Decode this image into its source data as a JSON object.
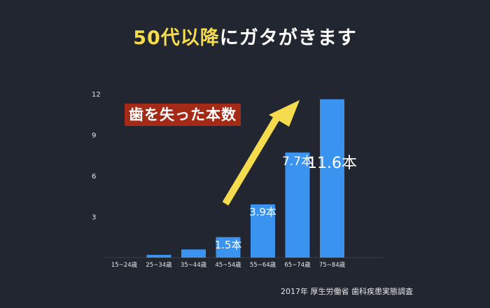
{
  "title": {
    "highlight": "50代以降",
    "rest": "にガタがきます"
  },
  "badge": "歯を失った本数",
  "source": "2017年 厚生労働省 歯科疾患実態調査",
  "colors": {
    "background": "#222630",
    "bar": "#3b93f0",
    "highlight": "#f5dc4e",
    "badge": "#a32a17",
    "arrow": "#f5dc4e"
  },
  "chart_data": {
    "type": "bar",
    "categories": [
      "15~24歳",
      "25~34歳",
      "35~44歳",
      "45~54歳",
      "55~64歳",
      "65~74歳",
      "75~84歳"
    ],
    "values": [
      0,
      0.2,
      0.6,
      1.5,
      3.9,
      7.7,
      11.6
    ],
    "value_labels": [
      "",
      "",
      "",
      "1.5本",
      "3.9本",
      "7.7本",
      "11.6本"
    ],
    "yticks": [
      "3",
      "6",
      "9",
      "12"
    ],
    "ylim": [
      0,
      12
    ],
    "grid": false,
    "title": "",
    "xlabel": "",
    "ylabel": ""
  }
}
